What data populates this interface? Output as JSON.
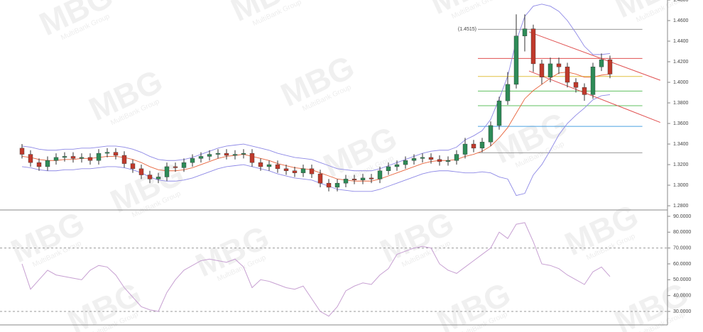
{
  "chart_data": [
    {
      "type": "candlestick",
      "open": [
        1.336,
        1.33,
        1.322,
        1.318,
        1.324,
        1.327,
        1.328,
        1.326,
        1.327,
        1.324,
        1.331,
        1.332,
        1.329,
        1.321,
        1.316,
        1.31,
        1.306,
        1.308,
        1.318,
        1.317,
        1.322,
        1.326,
        1.328,
        1.33,
        1.331,
        1.329,
        1.33,
        1.331,
        1.322,
        1.318,
        1.32,
        1.316,
        1.314,
        1.312,
        1.316,
        1.311,
        1.302,
        1.298,
        1.302,
        1.306,
        1.305,
        1.307,
        1.306,
        1.314,
        1.318,
        1.32,
        1.324,
        1.326,
        1.327,
        1.325,
        1.323,
        1.324,
        1.33,
        1.34,
        1.336,
        1.342,
        1.358,
        1.382,
        1.398,
        1.445,
        1.452,
        1.418,
        1.405,
        1.418,
        1.415,
        1.4,
        1.395,
        1.388,
        1.415,
        1.422
      ],
      "high": [
        1.34,
        1.334,
        1.326,
        1.328,
        1.331,
        1.332,
        1.332,
        1.331,
        1.331,
        1.335,
        1.336,
        1.336,
        1.333,
        1.325,
        1.32,
        1.314,
        1.312,
        1.322,
        1.322,
        1.326,
        1.33,
        1.332,
        1.334,
        1.335,
        1.335,
        1.334,
        1.335,
        1.335,
        1.326,
        1.324,
        1.324,
        1.32,
        1.318,
        1.32,
        1.32,
        1.315,
        1.306,
        1.306,
        1.31,
        1.31,
        1.311,
        1.311,
        1.318,
        1.322,
        1.324,
        1.328,
        1.33,
        1.331,
        1.331,
        1.329,
        1.328,
        1.334,
        1.346,
        1.344,
        1.346,
        1.362,
        1.386,
        1.41,
        1.466,
        1.466,
        1.456,
        1.422,
        1.424,
        1.424,
        1.419,
        1.404,
        1.399,
        1.419,
        1.428,
        1.426
      ],
      "low": [
        1.326,
        1.318,
        1.314,
        1.314,
        1.32,
        1.323,
        1.322,
        1.322,
        1.32,
        1.32,
        1.327,
        1.325,
        1.317,
        1.312,
        1.306,
        1.302,
        1.302,
        1.304,
        1.313,
        1.313,
        1.318,
        1.322,
        1.324,
        1.326,
        1.325,
        1.325,
        1.326,
        1.318,
        1.314,
        1.314,
        1.312,
        1.31,
        1.308,
        1.308,
        1.307,
        1.298,
        1.294,
        1.294,
        1.298,
        1.301,
        1.301,
        1.302,
        1.302,
        1.31,
        1.314,
        1.316,
        1.32,
        1.322,
        1.321,
        1.319,
        1.319,
        1.32,
        1.326,
        1.332,
        1.332,
        1.338,
        1.354,
        1.378,
        1.394,
        1.43,
        1.41,
        1.398,
        1.4,
        1.408,
        1.395,
        1.39,
        1.382,
        1.384,
        1.411,
        1.404
      ],
      "close": [
        1.33,
        1.322,
        1.318,
        1.324,
        1.327,
        1.328,
        1.326,
        1.327,
        1.324,
        1.331,
        1.332,
        1.329,
        1.321,
        1.316,
        1.31,
        1.306,
        1.308,
        1.318,
        1.317,
        1.322,
        1.326,
        1.328,
        1.33,
        1.331,
        1.329,
        1.33,
        1.331,
        1.322,
        1.318,
        1.32,
        1.316,
        1.314,
        1.312,
        1.316,
        1.311,
        1.302,
        1.298,
        1.302,
        1.306,
        1.305,
        1.307,
        1.306,
        1.314,
        1.318,
        1.32,
        1.324,
        1.326,
        1.327,
        1.325,
        1.323,
        1.324,
        1.33,
        1.34,
        1.336,
        1.342,
        1.358,
        1.382,
        1.398,
        1.445,
        1.452,
        1.418,
        1.405,
        1.418,
        1.415,
        1.4,
        1.395,
        1.388,
        1.415,
        1.422,
        1.408
      ],
      "up_color": "#2e8b57",
      "down_color": "#c0392b",
      "bands": {
        "color": "#8d88e6",
        "middle_color": "#e8643c",
        "upper": [
          1.338,
          1.337,
          1.335,
          1.334,
          1.334,
          1.335,
          1.335,
          1.336,
          1.336,
          1.337,
          1.338,
          1.338,
          1.337,
          1.335,
          1.332,
          1.328,
          1.325,
          1.324,
          1.324,
          1.325,
          1.327,
          1.33,
          1.333,
          1.336,
          1.338,
          1.339,
          1.34,
          1.338,
          1.336,
          1.334,
          1.331,
          1.329,
          1.327,
          1.326,
          1.325,
          1.322,
          1.319,
          1.316,
          1.315,
          1.314,
          1.314,
          1.314,
          1.316,
          1.319,
          1.322,
          1.325,
          1.328,
          1.331,
          1.333,
          1.334,
          1.334,
          1.337,
          1.344,
          1.348,
          1.353,
          1.364,
          1.384,
          1.406,
          1.44,
          1.464,
          1.474,
          1.476,
          1.474,
          1.469,
          1.46,
          1.448,
          1.435,
          1.427,
          1.427,
          1.428
        ],
        "middle": [
          1.328,
          1.327,
          1.325,
          1.324,
          1.324,
          1.325,
          1.325,
          1.326,
          1.326,
          1.327,
          1.328,
          1.328,
          1.327,
          1.325,
          1.322,
          1.318,
          1.315,
          1.314,
          1.314,
          1.315,
          1.317,
          1.32,
          1.323,
          1.326,
          1.328,
          1.329,
          1.33,
          1.328,
          1.326,
          1.324,
          1.321,
          1.319,
          1.317,
          1.316,
          1.315,
          1.312,
          1.309,
          1.306,
          1.305,
          1.304,
          1.304,
          1.304,
          1.306,
          1.309,
          1.312,
          1.315,
          1.318,
          1.321,
          1.323,
          1.324,
          1.324,
          1.325,
          1.328,
          1.33,
          1.333,
          1.338,
          1.346,
          1.356,
          1.37,
          1.384,
          1.392,
          1.398,
          1.404,
          1.409,
          1.41,
          1.408,
          1.405,
          1.405,
          1.407,
          1.408
        ],
        "lower": [
          1.318,
          1.317,
          1.315,
          1.314,
          1.314,
          1.315,
          1.315,
          1.316,
          1.316,
          1.317,
          1.318,
          1.318,
          1.317,
          1.315,
          1.312,
          1.308,
          1.305,
          1.304,
          1.304,
          1.305,
          1.307,
          1.31,
          1.313,
          1.316,
          1.318,
          1.319,
          1.32,
          1.318,
          1.316,
          1.314,
          1.311,
          1.309,
          1.307,
          1.306,
          1.305,
          1.302,
          1.299,
          1.296,
          1.295,
          1.294,
          1.294,
          1.294,
          1.296,
          1.299,
          1.302,
          1.305,
          1.308,
          1.311,
          1.313,
          1.314,
          1.314,
          1.313,
          1.312,
          1.312,
          1.313,
          1.312,
          1.308,
          1.306,
          1.29,
          1.292,
          1.31,
          1.32,
          1.334,
          1.349,
          1.36,
          1.368,
          1.375,
          1.383,
          1.387,
          1.388
        ]
      },
      "levels": [
        {
          "value": 1.4515,
          "color": "#999999",
          "label": "(1.4515)"
        },
        {
          "value": 1.4232,
          "color": "#e05050"
        },
        {
          "value": 1.4057,
          "color": "#e0c040"
        },
        {
          "value": 1.3915,
          "color": "#60c060"
        },
        {
          "value": 1.3773,
          "color": "#60c060"
        },
        {
          "value": 1.3572,
          "color": "#4aa0e0"
        },
        {
          "value": 1.3315,
          "color": "#999999"
        }
      ],
      "level_x": [
        53.5,
        72.8
      ],
      "trendlines": [
        {
          "x": [
            59.5,
            74.9
          ],
          "y": [
            1.449,
            1.402
          ]
        },
        {
          "x": [
            59.5,
            74.9
          ],
          "y": [
            1.411,
            1.361
          ]
        }
      ],
      "trendline_color": "#e05050",
      "ylim": [
        1.2766,
        1.48
      ],
      "yticks": [
        {
          "value": 1.28,
          "label": "1.2800"
        },
        {
          "value": 1.3,
          "label": "1.3000"
        },
        {
          "value": 1.32,
          "label": "1.3200"
        },
        {
          "value": 1.34,
          "label": "1.3400"
        },
        {
          "value": 1.36,
          "label": "1.3600"
        },
        {
          "value": 1.38,
          "label": "1.3800"
        },
        {
          "value": 1.4,
          "label": "1.4000"
        },
        {
          "value": 1.42,
          "label": "1.4200"
        },
        {
          "value": 1.44,
          "label": "1.4400"
        },
        {
          "value": 1.46,
          "label": "1.4600"
        },
        {
          "value": 1.48,
          "label": "1.4800"
        }
      ]
    },
    {
      "type": "line",
      "values": [
        60,
        44,
        50,
        56,
        53,
        52,
        51,
        50,
        56,
        59,
        58,
        53,
        45,
        39,
        33,
        31,
        30,
        42,
        50,
        56,
        59,
        62,
        63,
        62,
        61,
        63,
        58,
        45,
        50,
        49,
        47,
        45,
        44,
        46,
        38,
        30,
        27,
        33,
        43,
        46,
        48,
        47,
        53,
        57,
        66,
        68,
        70,
        71,
        70,
        60,
        56,
        54,
        58,
        62,
        66,
        70,
        80,
        76,
        85,
        86,
        74,
        60,
        59,
        57,
        53,
        50,
        47,
        55,
        58,
        52
      ],
      "color": "#c7a0d2",
      "hlines": [
        70,
        30
      ],
      "ylim": [
        21.5,
        93.1
      ],
      "yticks": [
        {
          "value": 30,
          "label": "30.0000"
        },
        {
          "value": 40,
          "label": "40.0000"
        },
        {
          "value": 50,
          "label": "50.0000"
        },
        {
          "value": 60,
          "label": "60.0000"
        },
        {
          "value": 70,
          "label": "70.0000"
        },
        {
          "value": 80,
          "label": "80.0000"
        },
        {
          "value": 90,
          "label": "90.0000"
        }
      ]
    }
  ],
  "watermark": {
    "logo": "MBG",
    "text": "MultiBank Group"
  }
}
